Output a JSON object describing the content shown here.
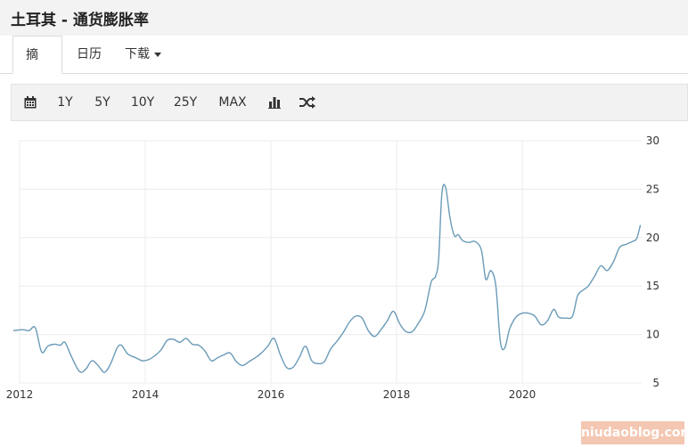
{
  "page": {
    "title": "土耳其 - 通货膨胀率"
  },
  "tabs": [
    {
      "label": "摘要",
      "active": true
    },
    {
      "label": "日历",
      "active": false
    },
    {
      "label": "下载",
      "active": false,
      "has_dropdown": true
    }
  ],
  "toolbar": {
    "ranges": [
      "1Y",
      "5Y",
      "10Y",
      "25Y",
      "MAX"
    ],
    "icons": [
      "calendar-icon",
      "bar-chart-icon",
      "shuffle-icon"
    ]
  },
  "chart_data": {
    "type": "line",
    "title": "",
    "xlabel": "",
    "ylabel": "",
    "x_ticks": [
      "2012",
      "2014",
      "2016",
      "2018",
      "2020"
    ],
    "y_ticks": [
      5,
      10,
      15,
      20,
      25,
      30
    ],
    "ylim": [
      5,
      30
    ],
    "xlim": [
      2012,
      2021.9
    ],
    "y_axis_side": "right",
    "grid": true,
    "color": "#6a9bb8",
    "series": [
      {
        "values": [
          [
            2011.9,
            10.4
          ],
          [
            2012.05,
            10.5
          ],
          [
            2012.15,
            10.4
          ],
          [
            2012.25,
            10.7
          ],
          [
            2012.35,
            8.2
          ],
          [
            2012.45,
            8.8
          ],
          [
            2012.55,
            9.0
          ],
          [
            2012.65,
            8.9
          ],
          [
            2012.72,
            9.2
          ],
          [
            2012.82,
            7.8
          ],
          [
            2012.95,
            6.2
          ],
          [
            2013.05,
            6.4
          ],
          [
            2013.15,
            7.3
          ],
          [
            2013.25,
            6.8
          ],
          [
            2013.35,
            6.1
          ],
          [
            2013.45,
            7.0
          ],
          [
            2013.55,
            8.6
          ],
          [
            2013.62,
            8.9
          ],
          [
            2013.72,
            8.0
          ],
          [
            2013.85,
            7.6
          ],
          [
            2013.95,
            7.3
          ],
          [
            2014.05,
            7.4
          ],
          [
            2014.15,
            7.8
          ],
          [
            2014.25,
            8.4
          ],
          [
            2014.35,
            9.4
          ],
          [
            2014.45,
            9.5
          ],
          [
            2014.55,
            9.2
          ],
          [
            2014.65,
            9.6
          ],
          [
            2014.75,
            9.0
          ],
          [
            2014.85,
            8.9
          ],
          [
            2014.95,
            8.3
          ],
          [
            2015.05,
            7.3
          ],
          [
            2015.15,
            7.6
          ],
          [
            2015.25,
            7.9
          ],
          [
            2015.35,
            8.1
          ],
          [
            2015.45,
            7.2
          ],
          [
            2015.55,
            6.8
          ],
          [
            2015.65,
            7.2
          ],
          [
            2015.75,
            7.6
          ],
          [
            2015.85,
            8.1
          ],
          [
            2015.95,
            8.8
          ],
          [
            2016.05,
            9.6
          ],
          [
            2016.15,
            7.9
          ],
          [
            2016.25,
            6.6
          ],
          [
            2016.35,
            6.6
          ],
          [
            2016.45,
            7.6
          ],
          [
            2016.55,
            8.8
          ],
          [
            2016.65,
            7.3
          ],
          [
            2016.75,
            7.0
          ],
          [
            2016.85,
            7.2
          ],
          [
            2016.95,
            8.5
          ],
          [
            2017.05,
            9.3
          ],
          [
            2017.15,
            10.2
          ],
          [
            2017.25,
            11.3
          ],
          [
            2017.35,
            11.9
          ],
          [
            2017.45,
            11.7
          ],
          [
            2017.55,
            10.4
          ],
          [
            2017.65,
            9.8
          ],
          [
            2017.75,
            10.5
          ],
          [
            2017.85,
            11.4
          ],
          [
            2017.95,
            12.4
          ],
          [
            2018.05,
            11.1
          ],
          [
            2018.15,
            10.3
          ],
          [
            2018.25,
            10.3
          ],
          [
            2018.35,
            11.2
          ],
          [
            2018.45,
            12.5
          ],
          [
            2018.55,
            15.4
          ],
          [
            2018.62,
            16.0
          ],
          [
            2018.67,
            17.9
          ],
          [
            2018.72,
            24.5
          ],
          [
            2018.78,
            25.2
          ],
          [
            2018.85,
            22.0
          ],
          [
            2018.92,
            20.2
          ],
          [
            2018.98,
            20.3
          ],
          [
            2019.05,
            19.7
          ],
          [
            2019.15,
            19.5
          ],
          [
            2019.25,
            19.6
          ],
          [
            2019.35,
            18.7
          ],
          [
            2019.42,
            15.7
          ],
          [
            2019.5,
            16.6
          ],
          [
            2019.58,
            15.0
          ],
          [
            2019.65,
            9.3
          ],
          [
            2019.72,
            8.6
          ],
          [
            2019.8,
            10.6
          ],
          [
            2019.9,
            11.8
          ],
          [
            2020.0,
            12.2
          ],
          [
            2020.1,
            12.2
          ],
          [
            2020.2,
            11.9
          ],
          [
            2020.3,
            11.0
          ],
          [
            2020.4,
            11.4
          ],
          [
            2020.5,
            12.6
          ],
          [
            2020.58,
            11.8
          ],
          [
            2020.7,
            11.7
          ],
          [
            2020.8,
            11.9
          ],
          [
            2020.88,
            14.0
          ],
          [
            2020.97,
            14.6
          ],
          [
            2021.05,
            15.0
          ],
          [
            2021.15,
            16.0
          ],
          [
            2021.25,
            17.1
          ],
          [
            2021.35,
            16.6
          ],
          [
            2021.45,
            17.5
          ],
          [
            2021.55,
            19.0
          ],
          [
            2021.65,
            19.3
          ],
          [
            2021.75,
            19.6
          ],
          [
            2021.82,
            19.9
          ],
          [
            2021.88,
            21.3
          ]
        ]
      }
    ]
  },
  "watermark": {
    "text": "niudaoblog.com"
  }
}
